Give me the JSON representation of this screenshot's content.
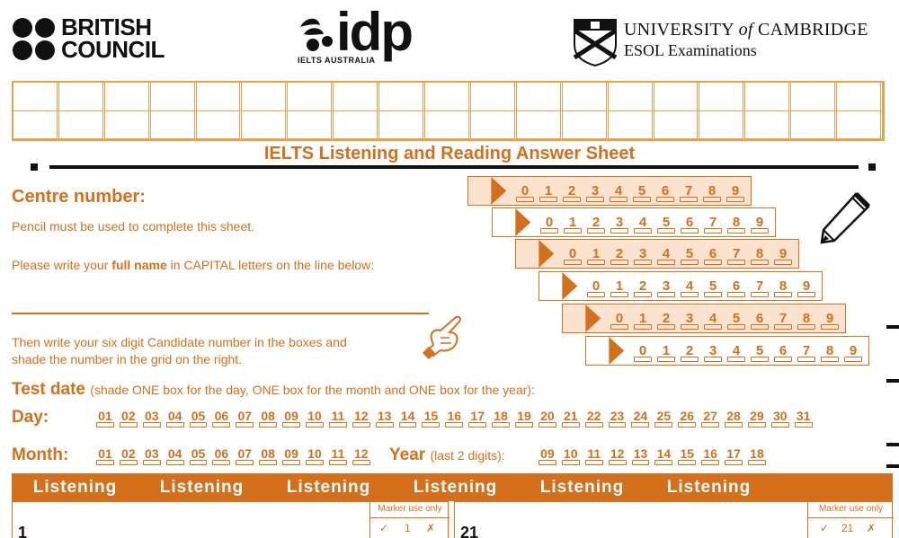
{
  "logos": {
    "british_council": [
      "BRITISH",
      "COUNCIL"
    ],
    "idp": "idp",
    "idp_sub": "IELTS AUSTRALIA",
    "cambridge_line1_a": "UNIVERSITY",
    "cambridge_line1_of": "of",
    "cambridge_line1_b": "CAMBRIDGE",
    "cambridge_line2": "ESOL Examinations"
  },
  "title": "IELTS Listening and Reading Answer Sheet",
  "centre_number_label": "Centre number:",
  "pencil_note": "Pencil must be used to complete this sheet.",
  "name_instruction": {
    "pre": "Please write your ",
    "bold": "full name",
    "post": " in CAPITAL letters on the line below:"
  },
  "candidate_instruction": [
    "Then write your six digit Candidate number in the boxes and",
    "shade the number in the grid on the right."
  ],
  "digits": [
    "0",
    "1",
    "2",
    "3",
    "4",
    "5",
    "6",
    "7",
    "8",
    "9"
  ],
  "test_date": {
    "label": "Test date",
    "hint": "(shade ONE box for the day, ONE box for the month and ONE box for the year):",
    "day_label": "Day:",
    "days": [
      "01",
      "02",
      "03",
      "04",
      "05",
      "06",
      "07",
      "08",
      "09",
      "10",
      "11",
      "12",
      "13",
      "14",
      "15",
      "16",
      "17",
      "18",
      "19",
      "20",
      "21",
      "22",
      "23",
      "24",
      "25",
      "26",
      "27",
      "28",
      "29",
      "30",
      "31"
    ],
    "month_label": "Month:",
    "months": [
      "01",
      "02",
      "03",
      "04",
      "05",
      "06",
      "07",
      "08",
      "09",
      "10",
      "11",
      "12"
    ],
    "year_label": "Year",
    "year_hint": "(last 2 digits):",
    "years": [
      "09",
      "10",
      "11",
      "12",
      "13",
      "14",
      "15",
      "16",
      "17",
      "18"
    ]
  },
  "listening_headers": [
    "Listening",
    "Listening",
    "Listening",
    "Listening",
    "Listening",
    "Listening"
  ],
  "marker_use": "Marker use only",
  "answers": [
    {
      "q": "1",
      "tick": "✓",
      "num": "1",
      "cross": "✗"
    },
    {
      "q": "21",
      "tick": "✓",
      "num": "21",
      "cross": "✗"
    }
  ]
}
